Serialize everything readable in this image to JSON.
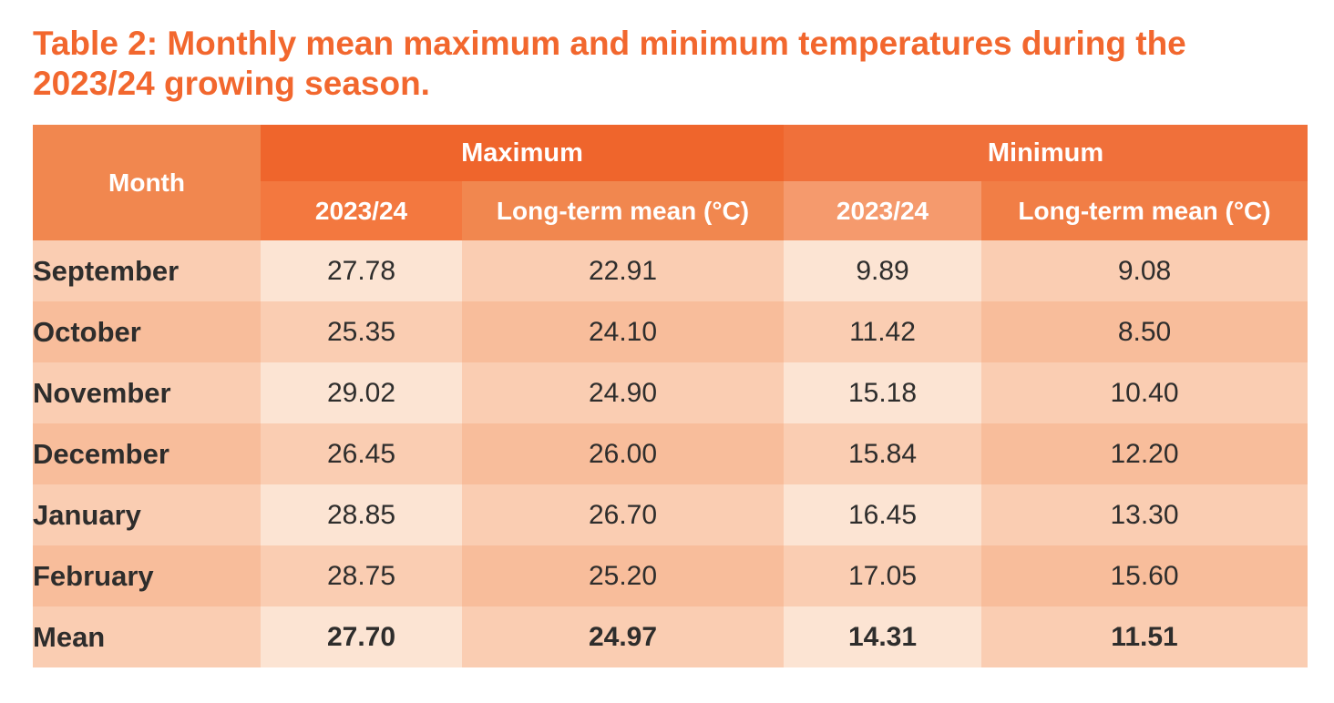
{
  "title": {
    "text": "Table 2: Monthly mean maximum and minimum temperatures during the 2023/24 growing season.",
    "line1": "Table 2: Monthly mean maximum and minimum temperatures during the",
    "line2": "2023/24 growing season.",
    "color": "#F2672E"
  },
  "table": {
    "corner_header": "Month",
    "groups": [
      {
        "label": "Maximum",
        "bg": "#EF652C",
        "sub": [
          {
            "label": "2023/24",
            "bg": "#F3783F"
          },
          {
            "label": "Long-term mean (°C)",
            "bg": "#F1874F"
          }
        ]
      },
      {
        "label": "Minimum",
        "bg": "#F0703A",
        "sub": [
          {
            "label": "2023/24",
            "bg": "#F59A6D"
          },
          {
            "label": "Long-term mean (°C)",
            "bg": "#F17E46"
          }
        ]
      }
    ],
    "rows": [
      {
        "month": "September",
        "values": [
          "27.78",
          "22.91",
          "9.89",
          "9.08"
        ]
      },
      {
        "month": "October",
        "values": [
          "25.35",
          "24.10",
          "11.42",
          "8.50"
        ]
      },
      {
        "month": "November",
        "values": [
          "29.02",
          "24.90",
          "15.18",
          "10.40"
        ]
      },
      {
        "month": "December",
        "values": [
          "26.45",
          "26.00",
          "15.84",
          "12.20"
        ]
      },
      {
        "month": "January",
        "values": [
          "28.85",
          "26.70",
          "16.45",
          "13.30"
        ]
      },
      {
        "month": "February",
        "values": [
          "28.75",
          "25.20",
          "17.05",
          "15.60"
        ]
      },
      {
        "month": "Mean",
        "values": [
          "27.70",
          "24.97",
          "14.31",
          "11.51"
        ],
        "emphasis": true
      }
    ],
    "palette": {
      "header_maximum": "#EF652C",
      "header_minimum": "#F0703A",
      "header_month": "#F1874F",
      "sub_2023_24_max": "#F3783F",
      "sub_longterm_max": "#F1874F",
      "sub_2023_24_min": "#F59A6D",
      "sub_longterm_min": "#F17E46",
      "row_light": "#FCE4D3",
      "row_medium": "#FACDB2",
      "row_dark": "#F8BD9B",
      "text_dark": "#2E2D2C",
      "text_header": "#FFFFFF"
    }
  },
  "chart_data": {
    "type": "table",
    "title": "Table 2: Monthly mean maximum and minimum temperatures during the 2023/24 growing season.",
    "column_groups": [
      "Maximum",
      "Minimum"
    ],
    "columns": [
      "Month",
      "Maximum 2023/24",
      "Maximum Long-term mean (°C)",
      "Minimum 2023/24",
      "Minimum Long-term mean (°C)"
    ],
    "rows": [
      {
        "month": "September",
        "maximum_2023_24": 27.78,
        "maximum_long_term_mean_c": 22.91,
        "minimum_2023_24": 9.89,
        "minimum_long_term_mean_c": 9.08
      },
      {
        "month": "October",
        "maximum_2023_24": 25.35,
        "maximum_long_term_mean_c": 24.1,
        "minimum_2023_24": 11.42,
        "minimum_long_term_mean_c": 8.5
      },
      {
        "month": "November",
        "maximum_2023_24": 29.02,
        "maximum_long_term_mean_c": 24.9,
        "minimum_2023_24": 15.18,
        "minimum_long_term_mean_c": 10.4
      },
      {
        "month": "December",
        "maximum_2023_24": 26.45,
        "maximum_long_term_mean_c": 26.0,
        "minimum_2023_24": 15.84,
        "minimum_long_term_mean_c": 12.2
      },
      {
        "month": "January",
        "maximum_2023_24": 28.85,
        "maximum_long_term_mean_c": 26.7,
        "minimum_2023_24": 16.45,
        "minimum_long_term_mean_c": 13.3
      },
      {
        "month": "February",
        "maximum_2023_24": 28.75,
        "maximum_long_term_mean_c": 25.2,
        "minimum_2023_24": 17.05,
        "minimum_long_term_mean_c": 15.6
      },
      {
        "month": "Mean",
        "maximum_2023_24": 27.7,
        "maximum_long_term_mean_c": 24.97,
        "minimum_2023_24": 14.31,
        "minimum_long_term_mean_c": 11.51
      }
    ]
  }
}
